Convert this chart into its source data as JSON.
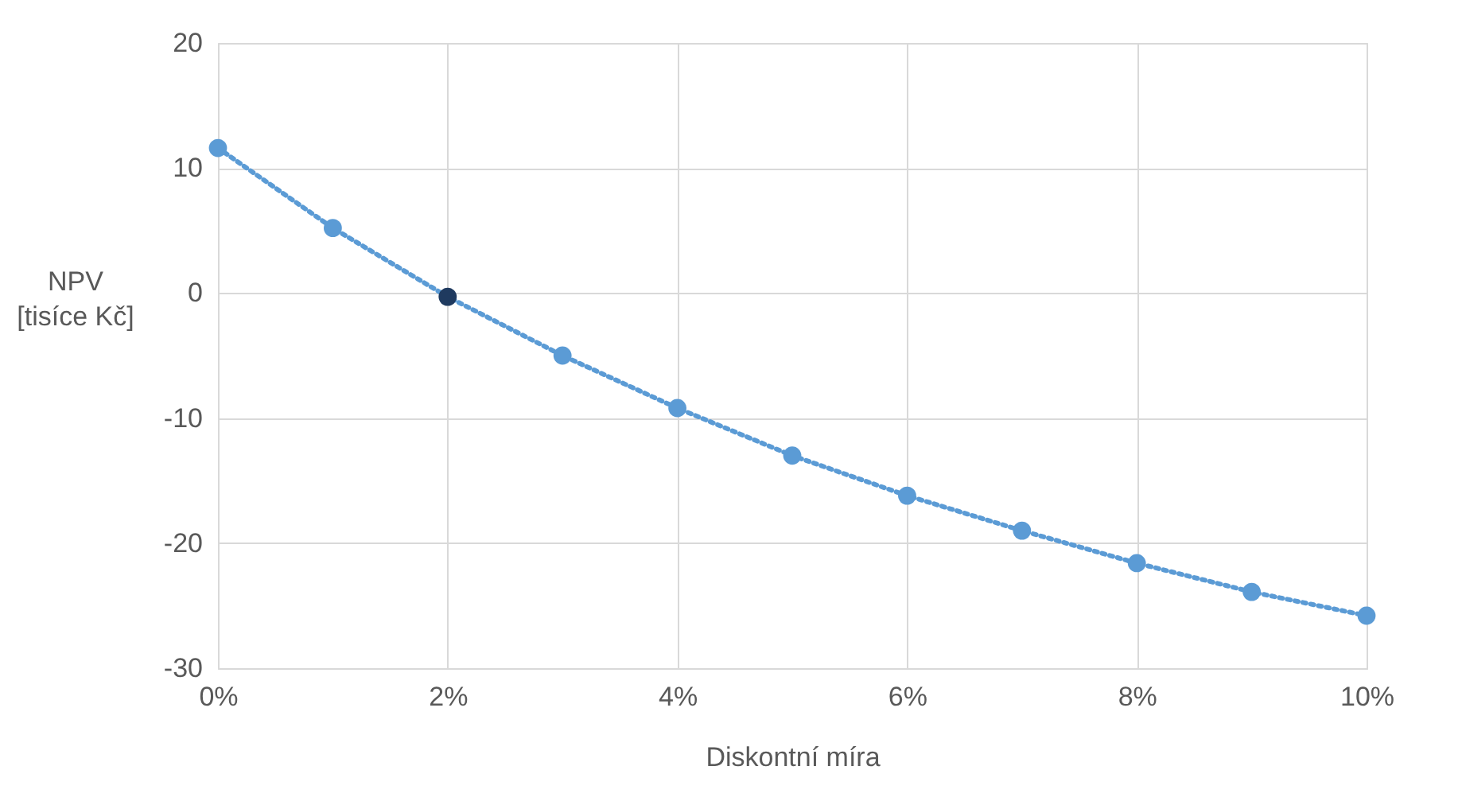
{
  "chart_data": {
    "type": "line",
    "xlabel": "Diskontní míra",
    "ylabel": "NPV\n[tisíce Kč]",
    "x": [
      0,
      1,
      2,
      3,
      4,
      5,
      6,
      7,
      8,
      9,
      10
    ],
    "series": [
      {
        "color": "#5b9bd5",
        "values": [
          11.6,
          5.2,
          -0.3,
          -5.0,
          -9.2,
          -13.0,
          -16.2,
          -19.0,
          -21.6,
          -23.9,
          -25.8
        ],
        "colors": [
          "#5b9bd5",
          "#5b9bd5",
          "#1f3a5f",
          "#5b9bd5",
          "#5b9bd5",
          "#5b9bd5",
          "#5b9bd5",
          "#5b9bd5",
          "#5b9bd5",
          "#5b9bd5",
          "#5b9bd5"
        ]
      }
    ],
    "xlim": [
      0,
      10
    ],
    "xticks": [
      {
        "value": 0,
        "label": "0%"
      },
      {
        "value": 2,
        "label": "2%"
      },
      {
        "value": 4,
        "label": "4%"
      },
      {
        "value": 6,
        "label": "6%"
      },
      {
        "value": 8,
        "label": "8%"
      },
      {
        "value": 10,
        "label": "10%"
      }
    ],
    "ylim": [
      -30,
      20
    ],
    "yticks": [
      -30,
      -20,
      -10,
      0,
      10,
      20
    ],
    "grid": true,
    "marker": "circle",
    "line_style": "dotted"
  }
}
